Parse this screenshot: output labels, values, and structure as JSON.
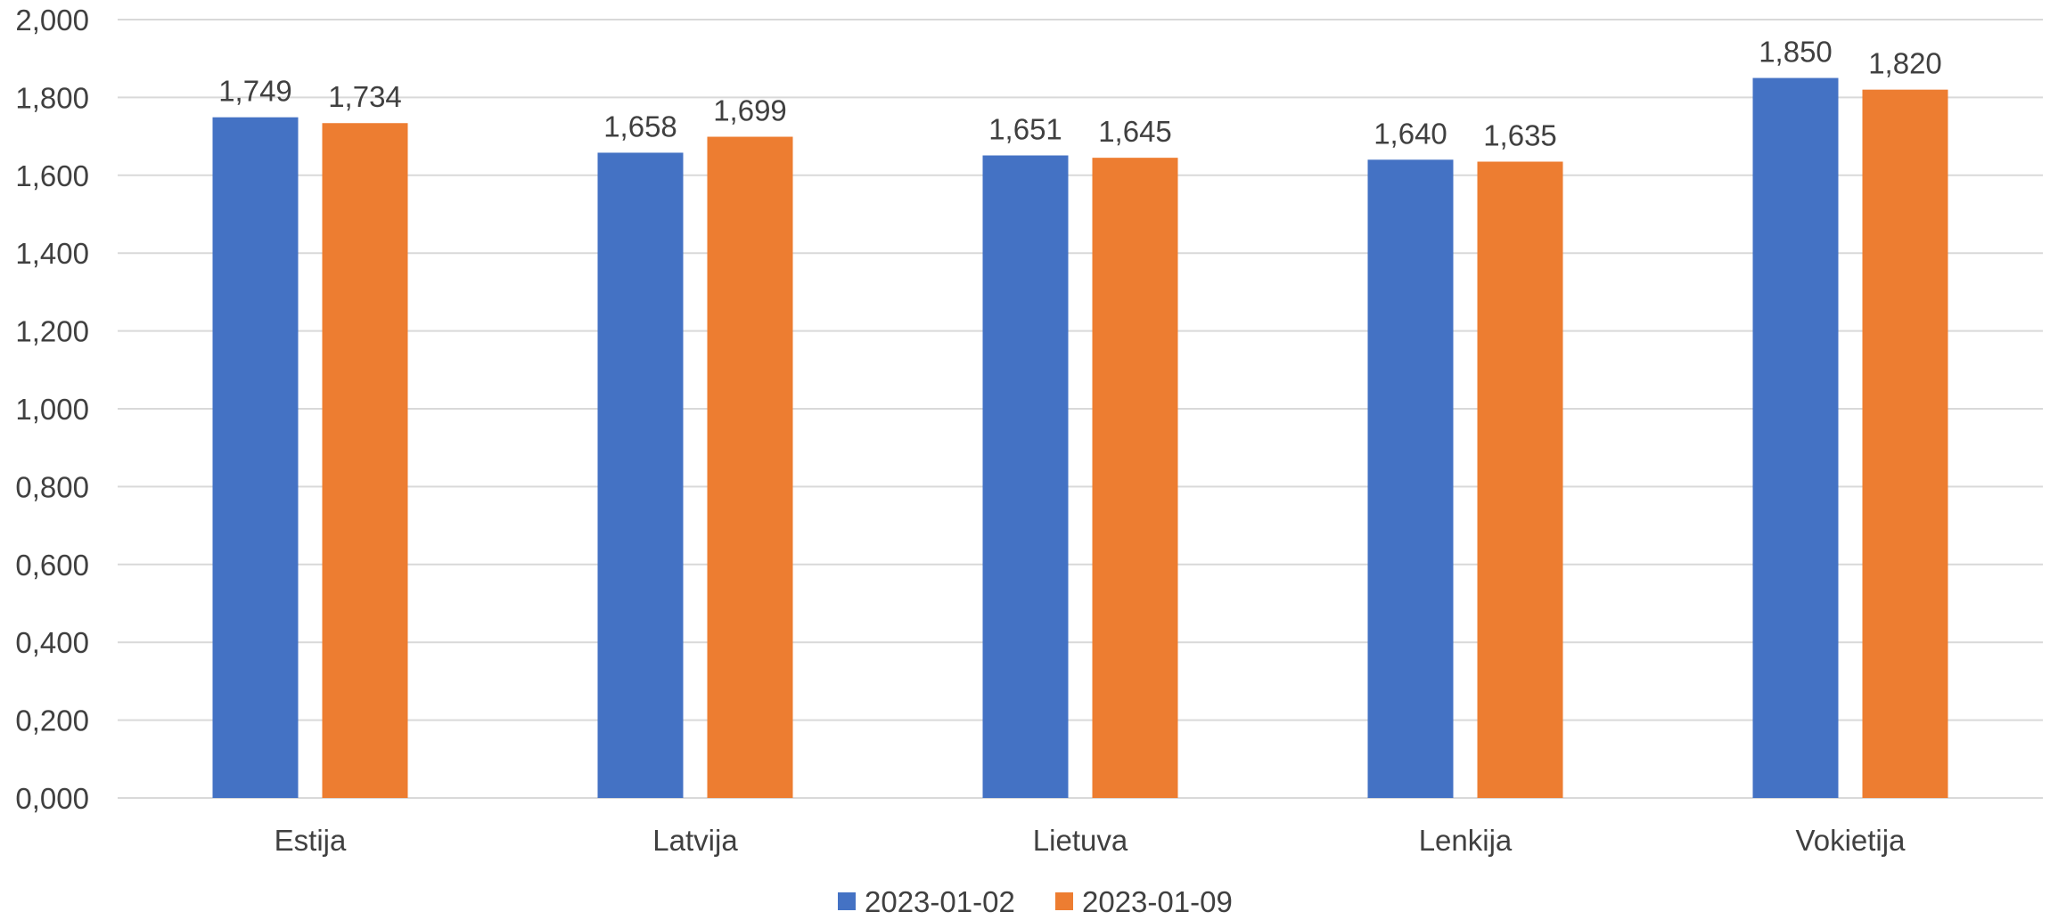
{
  "chart_data": {
    "type": "bar",
    "categories": [
      "Estija",
      "Latvija",
      "Lietuva",
      "Lenkija",
      "Vokietija"
    ],
    "series": [
      {
        "name": "2023-01-02",
        "color": "#4472c4",
        "values": [
          1.749,
          1.658,
          1.651,
          1.64,
          1.85
        ],
        "labels": [
          "1,749",
          "1,658",
          "1,651",
          "1,640",
          "1,850"
        ]
      },
      {
        "name": "2023-01-09",
        "color": "#ed7d31",
        "values": [
          1.734,
          1.699,
          1.645,
          1.635,
          1.82
        ],
        "labels": [
          "1,734",
          "1,699",
          "1,645",
          "1,635",
          "1,820"
        ]
      }
    ],
    "ylim": [
      0,
      2
    ],
    "yticks": [
      0,
      0.2,
      0.4,
      0.6,
      0.8,
      1.0,
      1.2,
      1.4,
      1.6,
      1.8,
      2.0
    ],
    "ytick_labels": [
      "0,000",
      "0,200",
      "0,400",
      "0,600",
      "0,800",
      "1,000",
      "1,200",
      "1,400",
      "1,600",
      "1,800",
      "2,000"
    ],
    "title": "",
    "xlabel": "",
    "ylabel": "",
    "grid": true,
    "legend_position": "bottom"
  }
}
